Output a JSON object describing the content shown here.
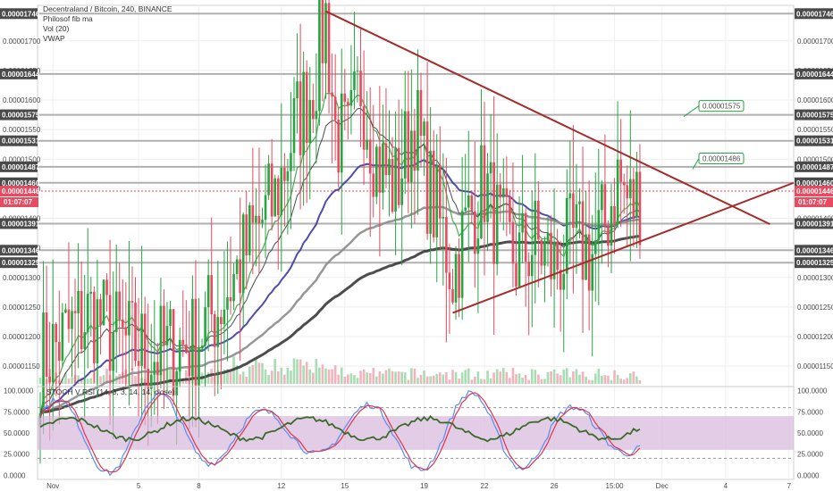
{
  "header": {
    "title": "Decentraland / Bitcoin, 240, BINANCE",
    "indicators": [
      "Philosof fib ma",
      "Vol (20)",
      "VWAP"
    ]
  },
  "colors": {
    "up": "#26a641",
    "down": "#e84a5f",
    "trend": "#a52a2a",
    "ma_blue": "#3d3aa0",
    "ma_gray": "#8c8c8c",
    "ma_dark": "#3a3a3a",
    "ma_green": "#3aa040",
    "stoch_k": "#5b8def",
    "stoch_d": "#e0334a",
    "rsi": "#3a6b2a",
    "band": "#d7b7dc"
  },
  "chart_data": [
    {
      "type": "candlestick",
      "title": "Decentraland / Bitcoin, 240, BINANCE",
      "ylim": [
        1.12e-05,
        1.76e-05
      ],
      "x_ticks": [
        "Nov",
        "5",
        "8",
        "12",
        "15",
        "19",
        "22",
        "26",
        "15:00",
        "Dec",
        "4",
        "7"
      ],
      "y_ticks": [
        "0.00001150",
        "0.00001200",
        "0.00001250",
        "0.00001300",
        "0.00001350",
        "0.00001400",
        "0.00001450",
        "0.00001500",
        "0.00001550",
        "0.00001600",
        "0.00001650",
        "0.00001700"
      ],
      "horizontal_levels": [
        "0.00001746",
        "0.00001644",
        "0.00001575",
        "0.00001531",
        "0.00001487",
        "0.00001460",
        "0.00001391",
        "0.00001346",
        "0.00001325"
      ],
      "current_price": "0.00001446",
      "countdown": "01:07:07",
      "callouts": [
        "0.00001575",
        "0.00001486"
      ],
      "anchors": [
        {
          "t": 0,
          "p": 1.16e-05
        },
        {
          "t": 8,
          "p": 1.2e-05
        },
        {
          "t": 16,
          "p": 1.24e-05
        },
        {
          "t": 26,
          "p": 1.19e-05
        },
        {
          "t": 36,
          "p": 1.17e-05
        },
        {
          "t": 48,
          "p": 1.19e-05
        },
        {
          "t": 56,
          "p": 1.25e-05
        },
        {
          "t": 62,
          "p": 1.31e-05
        },
        {
          "t": 68,
          "p": 1.38e-05
        },
        {
          "t": 74,
          "p": 1.43e-05
        },
        {
          "t": 80,
          "p": 1.55e-05
        },
        {
          "t": 86,
          "p": 1.63e-05
        },
        {
          "t": 90,
          "p": 1.74e-05
        },
        {
          "t": 93,
          "p": 1.55e-05
        },
        {
          "t": 97,
          "p": 1.52e-05
        },
        {
          "t": 101,
          "p": 1.63e-05
        },
        {
          "t": 106,
          "p": 1.5e-05
        },
        {
          "t": 112,
          "p": 1.45e-05
        },
        {
          "t": 118,
          "p": 1.57e-05
        },
        {
          "t": 122,
          "p": 1.46e-05
        },
        {
          "t": 127,
          "p": 1.37e-05
        },
        {
          "t": 130,
          "p": 1.31e-05
        },
        {
          "t": 135,
          "p": 1.4e-05
        },
        {
          "t": 140,
          "p": 1.46e-05
        },
        {
          "t": 145,
          "p": 1.37e-05
        },
        {
          "t": 150,
          "p": 1.33e-05
        },
        {
          "t": 156,
          "p": 1.36e-05
        },
        {
          "t": 162,
          "p": 1.32e-05
        },
        {
          "t": 168,
          "p": 1.36e-05
        },
        {
          "t": 174,
          "p": 1.34e-05
        },
        {
          "t": 178,
          "p": 1.39e-05
        },
        {
          "t": 182,
          "p": 1.47e-05
        },
        {
          "t": 186,
          "p": 1.42e-05
        },
        {
          "t": 189,
          "p": 1.44e-05
        }
      ],
      "trendlines": [
        {
          "from": {
            "t": 90,
            "p": 1.75e-05
          },
          "to": {
            "t": 230,
            "p": 1.39e-05
          }
        },
        {
          "from": {
            "t": 130,
            "p": 1.24e-05
          },
          "to": {
            "t": 260,
            "p": 1.46e-05
          }
        }
      ],
      "moving_averages": [
        {
          "color": "ma_blue",
          "period": 50,
          "width": 2
        },
        {
          "color": "ma_gray",
          "period": 100,
          "width": 2.5
        },
        {
          "color": "ma_dark",
          "period": 160,
          "width": 3
        },
        {
          "color": "ma_green",
          "period": 13,
          "width": 1.2
        },
        {
          "color": "ma_dark",
          "period": 21,
          "width": 1
        }
      ]
    },
    {
      "type": "line",
      "title": "STOCH V RSI (14, 3, 3, 14, 14, close)",
      "ylim": [
        -5,
        105
      ],
      "y_ticks": [
        "100.0000",
        "75.0000",
        "50.0000",
        "25.0000",
        "0.0000"
      ],
      "band": [
        30,
        70
      ],
      "dashed_levels": [
        80,
        20
      ]
    }
  ]
}
